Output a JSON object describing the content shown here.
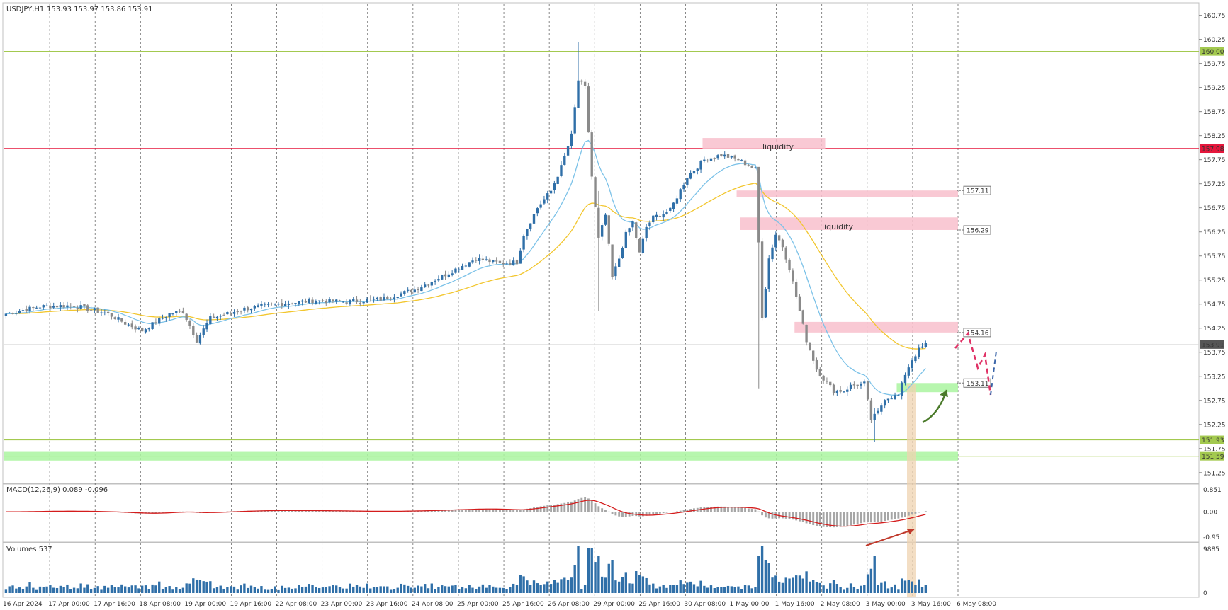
{
  "header": {
    "symbol": "USDJPY,H1",
    "ohlc": "153.93 153.97 153.86 153.91"
  },
  "macd_label": "MACD(12,26,9) 0.089 -0.096",
  "volume_label": "Volumes 537",
  "colors": {
    "bull": "#2f6fa8",
    "bear": "#8a8a8a",
    "ema_fast": "#7cc2e8",
    "ema_slow": "#f2c62e",
    "red_line": "#e5163b",
    "green_line": "#a3c94f",
    "pink_zone": "#f8bfcc",
    "green_zone": "#aaf5a0",
    "macd_signal": "#d41c1c",
    "volume": "#2f6fa8"
  },
  "chart_data": {
    "type": "candlestick",
    "x_labels": [
      "16 Apr 2024",
      "17 Apr 00:00",
      "17 Apr 16:00",
      "18 Apr 08:00",
      "19 Apr 00:00",
      "19 Apr 16:00",
      "22 Apr 08:00",
      "23 Apr 00:00",
      "23 Apr 16:00",
      "24 Apr 08:00",
      "25 Apr 00:00",
      "25 Apr 16:00",
      "26 Apr 08:00",
      "29 Apr 00:00",
      "29 Apr 16:00",
      "30 Apr 08:00",
      "1 May 00:00",
      "1 May 16:00",
      "2 May 08:00",
      "3 May 00:00",
      "3 May 16:00",
      "6 May 08:00"
    ],
    "price_ticks": [
      "160.75",
      "160.25",
      "159.75",
      "159.25",
      "158.75",
      "158.25",
      "157.75",
      "157.25",
      "156.75",
      "156.25",
      "155.75",
      "155.25",
      "154.75",
      "154.25",
      "153.75",
      "153.25",
      "152.75",
      "152.25",
      "151.75",
      "151.25"
    ],
    "ylim": [
      151.1,
      160.95
    ],
    "current_price": "153.91",
    "horizontal_lines": [
      {
        "name": "resistance-160",
        "price": 160.0,
        "label": "160.00",
        "color": "#a3c94f"
      },
      {
        "name": "resistance-157-98",
        "price": 157.98,
        "label": "157.98",
        "color": "#e5163b"
      },
      {
        "name": "support-151-93",
        "price": 151.93,
        "label": "151.93",
        "color": "#a3c94f"
      },
      {
        "name": "support-151-59",
        "price": 151.59,
        "label": "151.59",
        "color": "#a3c94f"
      }
    ],
    "zones": [
      {
        "name": "liquidity-zone-top",
        "from_bar": 205,
        "to_bar": 240,
        "y1": 158.2,
        "y2": 157.98,
        "label": "liquidity",
        "color": "#f8bfcc"
      },
      {
        "name": "zone-157-11",
        "from_bar": 215,
        "to_bar": 279,
        "y1": 157.11,
        "y2": 156.98,
        "label": "157.11",
        "color": "#f8bfcc"
      },
      {
        "name": "zone-156-29",
        "from_bar": 216,
        "to_bar": 279,
        "y1": 156.55,
        "y2": 156.29,
        "label": "liquidity",
        "price_tag": "156.29",
        "color": "#f8bfcc"
      },
      {
        "name": "zone-154-16",
        "from_bar": 232,
        "to_bar": 279,
        "y1": 154.38,
        "y2": 154.16,
        "label": "",
        "price_tag": "154.16",
        "color": "#f8bfcc"
      },
      {
        "name": "zone-153-11",
        "from_bar": 262,
        "to_bar": 279,
        "y1": 153.11,
        "y2": 152.92,
        "label": "",
        "price_tag": "153.11",
        "color": "#aaf5a0"
      },
      {
        "name": "zone-151-59",
        "from_bar": 0,
        "to_bar": 279,
        "y1": 151.68,
        "y2": 151.5,
        "label": "",
        "color": "#aaf5a0"
      }
    ],
    "macd_ticks": [
      "0.851",
      "0.00",
      "-0.95"
    ],
    "macd_ylim": [
      -1.05,
      0.95
    ],
    "volume_ticks": [
      "9885",
      "0"
    ],
    "volume_max": 9885,
    "anchors": [
      [
        0,
        154.55
      ],
      [
        10,
        154.7
      ],
      [
        20,
        154.72
      ],
      [
        30,
        154.55
      ],
      [
        35,
        154.35
      ],
      [
        40,
        154.2
      ],
      [
        48,
        154.55
      ],
      [
        52,
        154.6
      ],
      [
        56,
        154.0
      ],
      [
        60,
        154.45
      ],
      [
        70,
        154.65
      ],
      [
        80,
        154.75
      ],
      [
        90,
        154.82
      ],
      [
        100,
        154.8
      ],
      [
        110,
        154.85
      ],
      [
        120,
        155.05
      ],
      [
        130,
        155.4
      ],
      [
        138,
        155.7
      ],
      [
        145,
        155.6
      ],
      [
        150,
        155.62
      ],
      [
        152,
        156.2
      ],
      [
        156,
        156.75
      ],
      [
        160,
        157.1
      ],
      [
        163,
        157.6
      ],
      [
        166,
        158.25
      ],
      [
        168,
        159.4
      ],
      [
        170,
        159.25
      ],
      [
        172,
        157.4
      ],
      [
        174,
        156.1
      ],
      [
        176,
        156.6
      ],
      [
        178,
        155.3
      ],
      [
        180,
        155.7
      ],
      [
        182,
        156.2
      ],
      [
        184,
        156.45
      ],
      [
        186,
        155.8
      ],
      [
        188,
        156.35
      ],
      [
        190,
        156.55
      ],
      [
        195,
        156.7
      ],
      [
        200,
        157.4
      ],
      [
        205,
        157.75
      ],
      [
        210,
        157.85
      ],
      [
        215,
        157.75
      ],
      [
        220,
        157.55
      ],
      [
        222,
        154.5
      ],
      [
        224,
        155.7
      ],
      [
        226,
        156.2
      ],
      [
        228,
        155.95
      ],
      [
        230,
        155.5
      ],
      [
        232,
        154.9
      ],
      [
        235,
        154.0
      ],
      [
        238,
        153.4
      ],
      [
        240,
        153.2
      ],
      [
        243,
        152.95
      ],
      [
        246,
        152.95
      ],
      [
        248,
        153.05
      ],
      [
        252,
        153.1
      ],
      [
        254,
        152.35
      ],
      [
        256,
        152.5
      ],
      [
        258,
        152.8
      ],
      [
        262,
        152.85
      ],
      [
        264,
        153.3
      ],
      [
        266,
        153.6
      ],
      [
        268,
        153.8
      ],
      [
        270,
        153.91
      ]
    ],
    "spikes": [
      {
        "bar": 168,
        "high": 160.2,
        "low": 158.9
      },
      {
        "bar": 174,
        "high": 157.1,
        "low": 154.6
      },
      {
        "bar": 221,
        "high": 157.3,
        "low": 153.0
      },
      {
        "bar": 255,
        "high": 152.6,
        "low": 151.88
      }
    ]
  }
}
